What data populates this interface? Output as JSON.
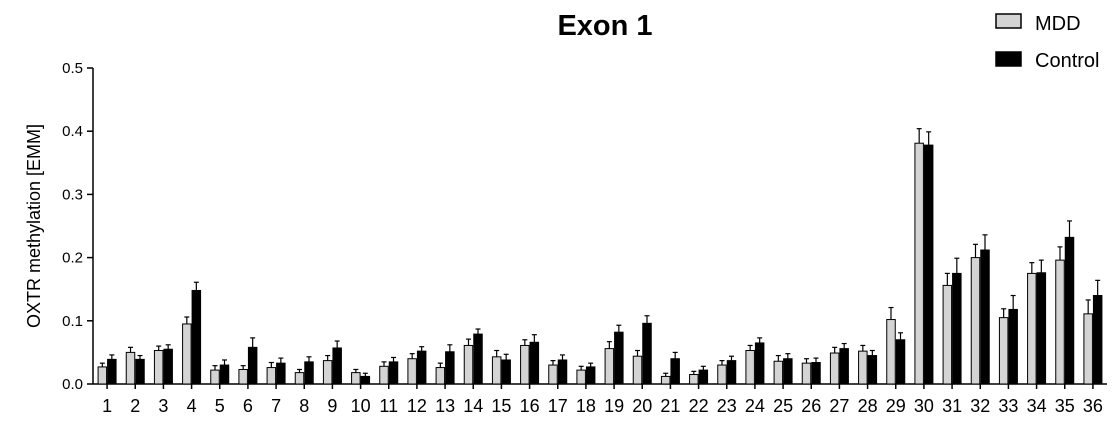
{
  "chart_data": {
    "type": "bar",
    "title": "Exon 1",
    "ylabel": "OXTR methylation [EMM]",
    "xlabel": "",
    "ylim": [
      0,
      0.5
    ],
    "yticks": [
      "0.0",
      "0.1",
      "0.2",
      "0.3",
      "0.4",
      "0.5"
    ],
    "ytick_values": [
      0,
      0.1,
      0.2,
      0.3,
      0.4,
      0.5
    ],
    "categories": [
      "1",
      "2",
      "3",
      "4",
      "5",
      "6",
      "7",
      "8",
      "9",
      "10",
      "11",
      "12",
      "13",
      "14",
      "15",
      "16",
      "17",
      "18",
      "19",
      "20",
      "21",
      "22",
      "23",
      "24",
      "25",
      "26",
      "27",
      "28",
      "29",
      "30",
      "31",
      "32",
      "33",
      "34",
      "35",
      "36"
    ],
    "legend_position": "top-right",
    "series": [
      {
        "name": "MDD",
        "color": "#d4d4d4",
        "values": [
          0.027,
          0.05,
          0.053,
          0.095,
          0.022,
          0.023,
          0.026,
          0.018,
          0.037,
          0.018,
          0.028,
          0.04,
          0.026,
          0.061,
          0.043,
          0.061,
          0.03,
          0.022,
          0.056,
          0.044,
          0.012,
          0.015,
          0.03,
          0.053,
          0.036,
          0.033,
          0.049,
          0.052,
          0.102,
          0.381,
          0.156,
          0.2,
          0.105,
          0.175,
          0.196,
          0.111
        ],
        "errors": [
          0.006,
          0.008,
          0.007,
          0.011,
          0.007,
          0.006,
          0.008,
          0.005,
          0.008,
          0.005,
          0.007,
          0.008,
          0.007,
          0.01,
          0.01,
          0.009,
          0.007,
          0.006,
          0.011,
          0.009,
          0.005,
          0.005,
          0.007,
          0.008,
          0.009,
          0.007,
          0.009,
          0.009,
          0.019,
          0.023,
          0.019,
          0.021,
          0.014,
          0.017,
          0.021,
          0.022
        ]
      },
      {
        "name": "Control",
        "color": "#000000",
        "values": [
          0.039,
          0.039,
          0.055,
          0.148,
          0.03,
          0.058,
          0.033,
          0.035,
          0.057,
          0.012,
          0.035,
          0.052,
          0.051,
          0.079,
          0.038,
          0.066,
          0.038,
          0.027,
          0.082,
          0.096,
          0.04,
          0.022,
          0.037,
          0.065,
          0.04,
          0.034,
          0.056,
          0.045,
          0.07,
          0.378,
          0.175,
          0.212,
          0.118,
          0.176,
          0.232,
          0.14
        ],
        "errors": [
          0.007,
          0.006,
          0.007,
          0.013,
          0.008,
          0.015,
          0.008,
          0.008,
          0.011,
          0.005,
          0.007,
          0.007,
          0.011,
          0.008,
          0.009,
          0.012,
          0.008,
          0.006,
          0.011,
          0.012,
          0.01,
          0.006,
          0.007,
          0.008,
          0.008,
          0.007,
          0.008,
          0.008,
          0.011,
          0.021,
          0.024,
          0.024,
          0.022,
          0.02,
          0.026,
          0.024
        ]
      }
    ]
  }
}
